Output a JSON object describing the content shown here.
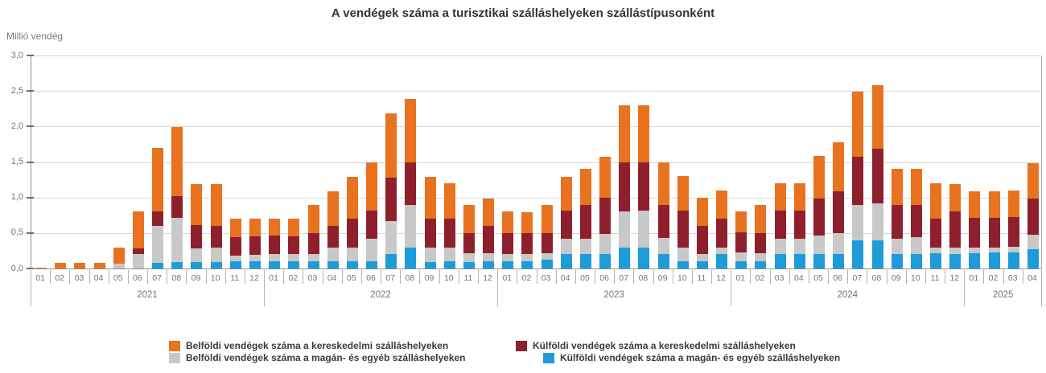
{
  "title": "A vendégek száma a turisztikai szálláshelyeken szállástípusonként",
  "y_axis": {
    "unit_label": "Millió vendég",
    "tick_labels_top_to_bottom": [
      "3,0",
      "2,5",
      "2,0",
      "1,5",
      "1,0",
      "0,5",
      "0,0"
    ],
    "min": 0,
    "max": 3,
    "step": 0.5
  },
  "legend": {
    "items": [
      {
        "id": "belfoldi_kereskedelmi",
        "label": "Belföldi vendégek száma a kereskedelmi szálláshelyeken",
        "color": "#e8721f"
      },
      {
        "id": "belfoldi_magan",
        "label": "Belföldi vendégek száma a magán- és egyéb szálláshelyeken",
        "color": "#c8c8c8"
      },
      {
        "id": "kulfoldi_kereskedelmi",
        "label": "Külföldi vendégek száma a kereskedelmi szálláshelyeken",
        "color": "#8e1f2d"
      },
      {
        "id": "kulfoldi_magan",
        "label": "Külföldi vendégek száma a magán- és egyéb szálláshelyeken",
        "color": "#1e9cd7"
      }
    ]
  },
  "chart_data": {
    "type": "bar",
    "stacked": true,
    "title": "A vendégek száma a turisztikai szálláshelyeken szállástípusonként",
    "ylabel": "Millió vendég",
    "ylim": [
      0,
      3
    ],
    "grid": true,
    "legend_position": "bottom",
    "unit": "millió vendég",
    "stack_order_bottom_to_top": [
      "kulfoldi_magan",
      "belfoldi_magan",
      "kulfoldi_kereskedelmi",
      "belfoldi_kereskedelmi"
    ],
    "years": [
      {
        "year": "2021",
        "months": [
          "01",
          "02",
          "03",
          "04",
          "05",
          "06",
          "07",
          "08",
          "09",
          "10",
          "11",
          "12"
        ],
        "series": {
          "kulfoldi_magan": [
            0,
            0,
            0,
            0,
            0,
            0,
            0.08,
            0.09,
            0.09,
            0.09,
            0.1,
            0.1
          ],
          "belfoldi_magan": [
            0,
            0,
            0,
            0,
            0.07,
            0.2,
            0.52,
            0.62,
            0.19,
            0.2,
            0.08,
            0.09
          ],
          "kulfoldi_kereskedelmi": [
            0,
            0,
            0,
            0,
            0,
            0.08,
            0.2,
            0.31,
            0.33,
            0.31,
            0.26,
            0.26
          ],
          "belfoldi_kereskedelmi": [
            0.01,
            0.08,
            0.08,
            0.08,
            0.22,
            0.52,
            0.9,
            0.97,
            0.58,
            0.59,
            0.26,
            0.25
          ]
        }
      },
      {
        "year": "2022",
        "months": [
          "01",
          "02",
          "03",
          "04",
          "05",
          "06",
          "07",
          "08",
          "09",
          "10",
          "11",
          "12"
        ],
        "series": {
          "kulfoldi_magan": [
            0.1,
            0.1,
            0.1,
            0.1,
            0.1,
            0.1,
            0.2,
            0.29,
            0.09,
            0.1,
            0.09,
            0.1
          ],
          "belfoldi_magan": [
            0.11,
            0.11,
            0.11,
            0.19,
            0.19,
            0.32,
            0.47,
            0.61,
            0.2,
            0.19,
            0.13,
            0.12
          ],
          "kulfoldi_kereskedelmi": [
            0.26,
            0.24,
            0.29,
            0.31,
            0.41,
            0.39,
            0.61,
            0.6,
            0.41,
            0.41,
            0.28,
            0.38
          ],
          "belfoldi_kereskedelmi": [
            0.23,
            0.25,
            0.39,
            0.49,
            0.59,
            0.68,
            0.91,
            0.89,
            0.59,
            0.5,
            0.39,
            0.39
          ]
        }
      },
      {
        "year": "2023",
        "months": [
          "01",
          "02",
          "03",
          "04",
          "05",
          "06",
          "07",
          "08",
          "09",
          "10",
          "11",
          "12"
        ],
        "series": {
          "kulfoldi_magan": [
            0.1,
            0.1,
            0.12,
            0.2,
            0.2,
            0.2,
            0.3,
            0.3,
            0.2,
            0.1,
            0.1,
            0.2
          ],
          "belfoldi_magan": [
            0.1,
            0.1,
            0.1,
            0.22,
            0.22,
            0.29,
            0.5,
            0.52,
            0.23,
            0.2,
            0.11,
            0.09
          ],
          "kulfoldi_kereskedelmi": [
            0.3,
            0.3,
            0.28,
            0.39,
            0.48,
            0.51,
            0.69,
            0.68,
            0.47,
            0.52,
            0.39,
            0.41
          ],
          "belfoldi_kereskedelmi": [
            0.3,
            0.29,
            0.39,
            0.48,
            0.5,
            0.58,
            0.81,
            0.8,
            0.59,
            0.48,
            0.4,
            0.4
          ]
        }
      },
      {
        "year": "2024",
        "months": [
          "01",
          "02",
          "03",
          "04",
          "05",
          "06",
          "07",
          "08",
          "09",
          "10",
          "11",
          "12"
        ],
        "series": {
          "kulfoldi_magan": [
            0.1,
            0.1,
            0.2,
            0.2,
            0.2,
            0.2,
            0.4,
            0.4,
            0.2,
            0.2,
            0.22,
            0.21
          ],
          "belfoldi_magan": [
            0.13,
            0.12,
            0.22,
            0.22,
            0.26,
            0.3,
            0.49,
            0.52,
            0.22,
            0.24,
            0.08,
            0.09
          ],
          "kulfoldi_kereskedelmi": [
            0.28,
            0.28,
            0.39,
            0.39,
            0.53,
            0.59,
            0.69,
            0.77,
            0.47,
            0.46,
            0.4,
            0.5
          ],
          "belfoldi_kereskedelmi": [
            0.3,
            0.4,
            0.39,
            0.39,
            0.59,
            0.69,
            0.91,
            0.89,
            0.51,
            0.5,
            0.5,
            0.39
          ]
        }
      },
      {
        "year": "2025",
        "months": [
          "01",
          "02",
          "03",
          "04"
        ],
        "series": {
          "kulfoldi_magan": [
            0.22,
            0.23,
            0.23,
            0.27
          ],
          "belfoldi_magan": [
            0.07,
            0.07,
            0.08,
            0.2
          ],
          "kulfoldi_kereskedelmi": [
            0.42,
            0.41,
            0.41,
            0.51
          ],
          "belfoldi_kereskedelmi": [
            0.38,
            0.38,
            0.38,
            0.5
          ]
        }
      }
    ]
  },
  "colors": {
    "title_text": "#333333",
    "axis_text": "#757575",
    "gridline": "#d9d9d9",
    "axis_line": "#8f8f8f"
  }
}
